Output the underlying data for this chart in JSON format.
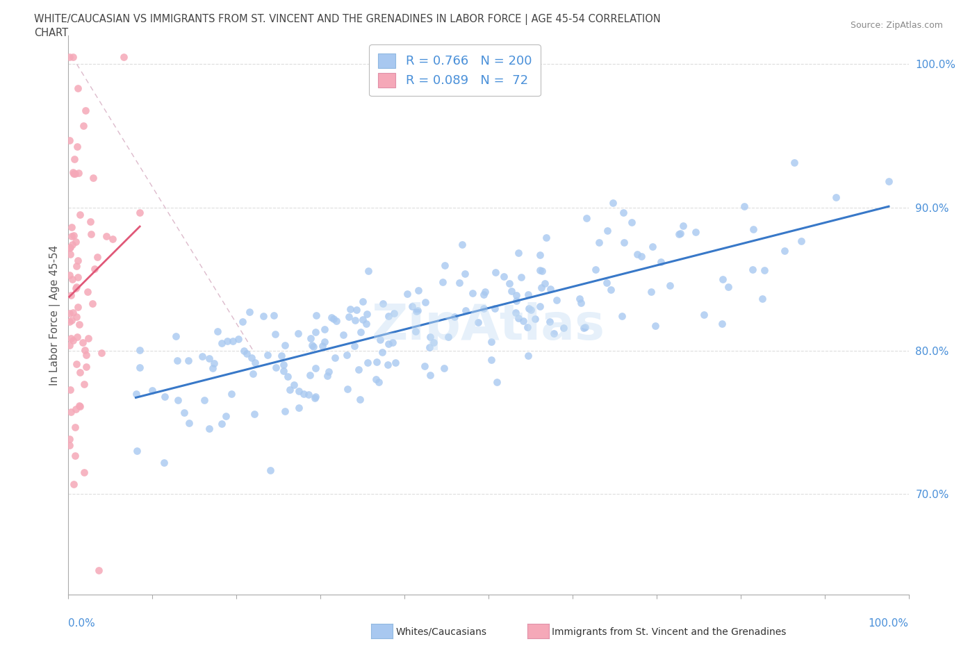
{
  "title_line1": "WHITE/CAUCASIAN VS IMMIGRANTS FROM ST. VINCENT AND THE GRENADINES IN LABOR FORCE | AGE 45-54 CORRELATION",
  "title_line2": "CHART",
  "source": "Source: ZipAtlas.com",
  "ylabel": "In Labor Force | Age 45-54",
  "xmin": 0.0,
  "xmax": 1.0,
  "ymin": 0.63,
  "ymax": 1.02,
  "blue_R": 0.766,
  "blue_N": 200,
  "pink_R": 0.089,
  "pink_N": 72,
  "blue_color": "#a8c8f0",
  "pink_color": "#f5a8b8",
  "blue_line_color": "#3878c8",
  "pink_line_color": "#e05878",
  "diag_line_color": "#ddbbcc",
  "watermark": "ZipAtlas",
  "ytick_labels": [
    "70.0%",
    "80.0%",
    "90.0%",
    "100.0%"
  ],
  "ytick_values": [
    0.7,
    0.8,
    0.9,
    1.0
  ],
  "background_color": "#ffffff",
  "legend_blue_label": "Whites/Caucasians",
  "legend_pink_label": "Immigrants from St. Vincent and the Grenadines"
}
